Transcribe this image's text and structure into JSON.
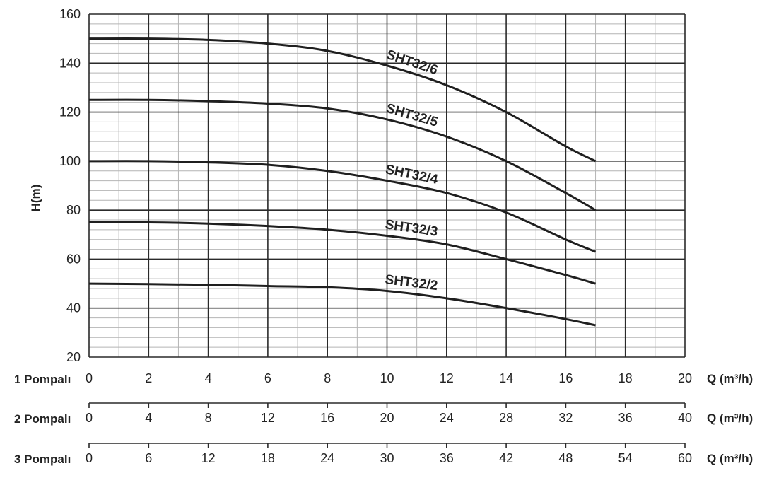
{
  "chart_data": {
    "type": "line",
    "ylabel": "H(m)",
    "ylim": [
      20,
      160
    ],
    "yticks": [
      "160",
      "140",
      "120",
      "100",
      "80",
      "60",
      "40",
      "20"
    ],
    "grid": true,
    "xlim": [
      0,
      20
    ],
    "x_axes": [
      {
        "label": "1 Pompalı",
        "unit": "Q (m³/h)",
        "ticks": [
          "0",
          "2",
          "4",
          "6",
          "8",
          "10",
          "12",
          "14",
          "16",
          "18",
          "20"
        ]
      },
      {
        "label": "2  Pompalı",
        "unit": "Q (m³/h)",
        "ticks": [
          "0",
          "4",
          "8",
          "12",
          "16",
          "20",
          "24",
          "28",
          "32",
          "36",
          "40"
        ]
      },
      {
        "label": "3 Pompalı",
        "unit": "Q (m³/h)",
        "ticks": [
          "0",
          "6",
          "12",
          "18",
          "24",
          "30",
          "36",
          "42",
          "48",
          "54",
          "60"
        ]
      }
    ],
    "series": [
      {
        "name": "SHT32/6",
        "x": [
          0,
          2,
          4,
          6,
          8,
          10,
          12,
          14,
          16,
          17
        ],
        "y": [
          150,
          150,
          149.5,
          148,
          145,
          139,
          131,
          120,
          106,
          100
        ]
      },
      {
        "name": "SHT32/5",
        "x": [
          0,
          2,
          4,
          6,
          8,
          10,
          12,
          14,
          16,
          17
        ],
        "y": [
          125,
          125,
          124.5,
          123.5,
          121.5,
          117,
          110,
          100,
          87,
          80
        ]
      },
      {
        "name": "SHT32/4",
        "x": [
          0,
          2,
          4,
          6,
          8,
          10,
          12,
          14,
          16,
          17
        ],
        "y": [
          100,
          100,
          99.5,
          98.5,
          96,
          92,
          87,
          79,
          68,
          63
        ]
      },
      {
        "name": "SHT32/3",
        "x": [
          0,
          2,
          4,
          6,
          8,
          10,
          12,
          14,
          16,
          17
        ],
        "y": [
          75,
          75,
          74.5,
          73.5,
          72,
          69.5,
          66,
          60,
          53.5,
          50
        ]
      },
      {
        "name": "SHT32/2",
        "x": [
          0,
          2,
          4,
          6,
          8,
          10,
          12,
          14,
          16,
          17
        ],
        "y": [
          50,
          49.8,
          49.5,
          49,
          48.5,
          47,
          44,
          40,
          35.5,
          33
        ]
      }
    ]
  }
}
